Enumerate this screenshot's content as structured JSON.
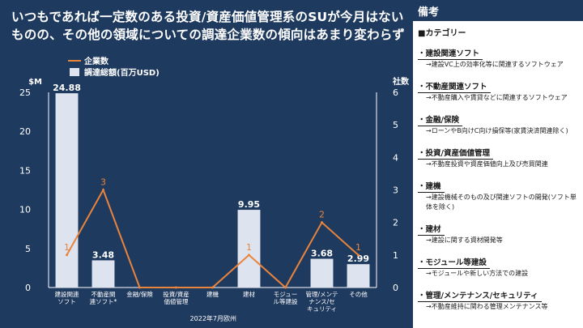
{
  "headline": {
    "line1": "いつもであれば一定数のある投資/資産価値管理系のSUが今月はない",
    "line2": "ものの、その他の領域についての調達企業数の傾向はあまり変わらず"
  },
  "footnote": "2022年7月欧州",
  "notes": {
    "header": "備考",
    "category_title": "■カテゴリー",
    "items": [
      {
        "name": "・建設関連ソフト",
        "desc": "→建設VC上の効率化等に関連するソフトウェア"
      },
      {
        "name": "・不動産関連ソフト",
        "desc": "→不動産購入や賃貸などに関連するソフトウェア"
      },
      {
        "name": "・金融/保険",
        "desc": "→ローンやB向けC向け損保等(家賃決済関連除く)"
      },
      {
        "name": "・投資/資産価値管理",
        "desc": "→不動産投資や資産価値向上及び売買関連"
      },
      {
        "name": "・建機",
        "desc": "→建設機械そのもの及び関連ソフトの開発(ソフト単体を除く)"
      },
      {
        "name": "・建材",
        "desc": "→建設に関する資材開発等"
      },
      {
        "name": "・モジュール等建設",
        "desc": "→モジュールや新しい方法での建設"
      },
      {
        "name": "・管理/メンテナンス/セキュリティ",
        "desc": "→不動産維持に関わる管理メンテナンス等"
      }
    ]
  },
  "colors": {
    "background": "#1f3a5f",
    "bar": "#dde3ef",
    "line": "#e8843c",
    "text": "#ffffff"
  },
  "chart_data": {
    "type": "bar",
    "categories": [
      "建設関連\nソフト",
      "不動産関\n連ソフト*",
      "金融/保険",
      "投資/資産\n価値管理",
      "建機",
      "建材",
      "モジュー\nル等建設",
      "管理/メンテ\nナンス/セ\nキュリティ",
      "その他"
    ],
    "series": [
      {
        "name": "調達総額(百万USD)",
        "type": "bar",
        "axis": "left",
        "values": [
          24.88,
          3.48,
          0,
          0,
          0,
          9.95,
          0,
          3.68,
          2.99
        ],
        "labels": [
          "24.88",
          "3.48",
          "",
          "",
          "",
          "9.95",
          "",
          "3.68",
          "2.99"
        ]
      },
      {
        "name": "企業数",
        "type": "line",
        "axis": "right",
        "values": [
          1,
          3,
          0,
          0,
          0,
          1,
          0,
          2,
          1
        ],
        "labels": [
          "1",
          "3",
          "",
          "",
          "",
          "1",
          "",
          "2",
          "1"
        ]
      }
    ],
    "ylabel_left": "$M",
    "ylabel_right": "社数",
    "ylim_left": [
      0,
      25
    ],
    "ylim_right": [
      0,
      6
    ],
    "yticks_left": [
      0,
      5,
      10,
      15,
      20,
      25
    ],
    "yticks_right": [
      0,
      1,
      2,
      3,
      4,
      5,
      6
    ],
    "legend_position": "top-left"
  }
}
